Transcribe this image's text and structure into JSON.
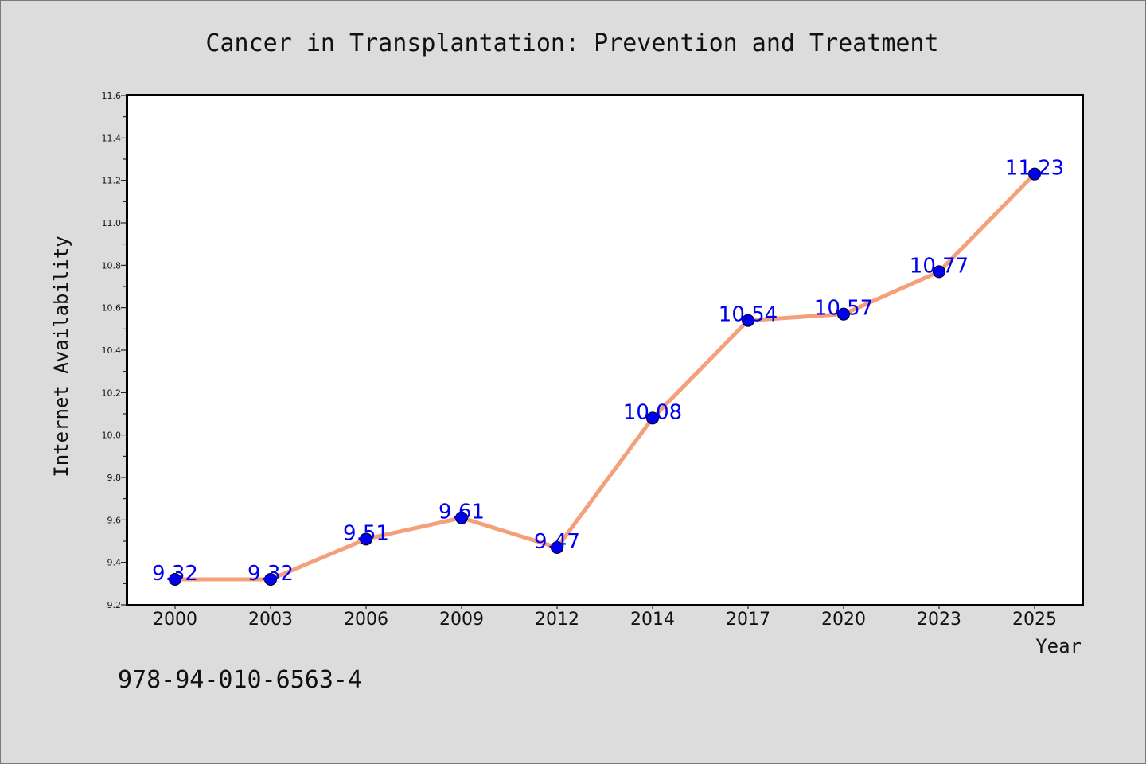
{
  "chart_data": {
    "type": "line",
    "title": "Cancer in Transplantation: Prevention and Treatment",
    "xlabel": "Year",
    "ylabel": "Internet Availability",
    "categories": [
      "2000",
      "2003",
      "2006",
      "2009",
      "2012",
      "2014",
      "2017",
      "2020",
      "2023",
      "2025"
    ],
    "values": [
      9.32,
      9.32,
      9.51,
      9.61,
      9.47,
      10.08,
      10.54,
      10.57,
      10.77,
      11.23
    ],
    "data_labels": [
      "9.32",
      "9.32",
      "9.51",
      "9.61",
      "9.47",
      "10.08",
      "10.54",
      "10.57",
      "10.77",
      "11.23"
    ],
    "ylim": [
      9.2,
      11.6
    ],
    "yticks": [
      "9.2",
      "9.4",
      "9.6",
      "9.8",
      "10.0",
      "10.2",
      "10.4",
      "10.6",
      "10.8",
      "11.0",
      "11.2",
      "11.4",
      "11.6"
    ],
    "grid": false,
    "legend": "none",
    "line_color": "#f4a07c",
    "marker_color": "#0000ee",
    "label_color": "#0000ee",
    "plot_background": "#ffffff",
    "page_background": "#dcdcdc"
  },
  "footer": {
    "code": "978-94-010-6563-4"
  }
}
